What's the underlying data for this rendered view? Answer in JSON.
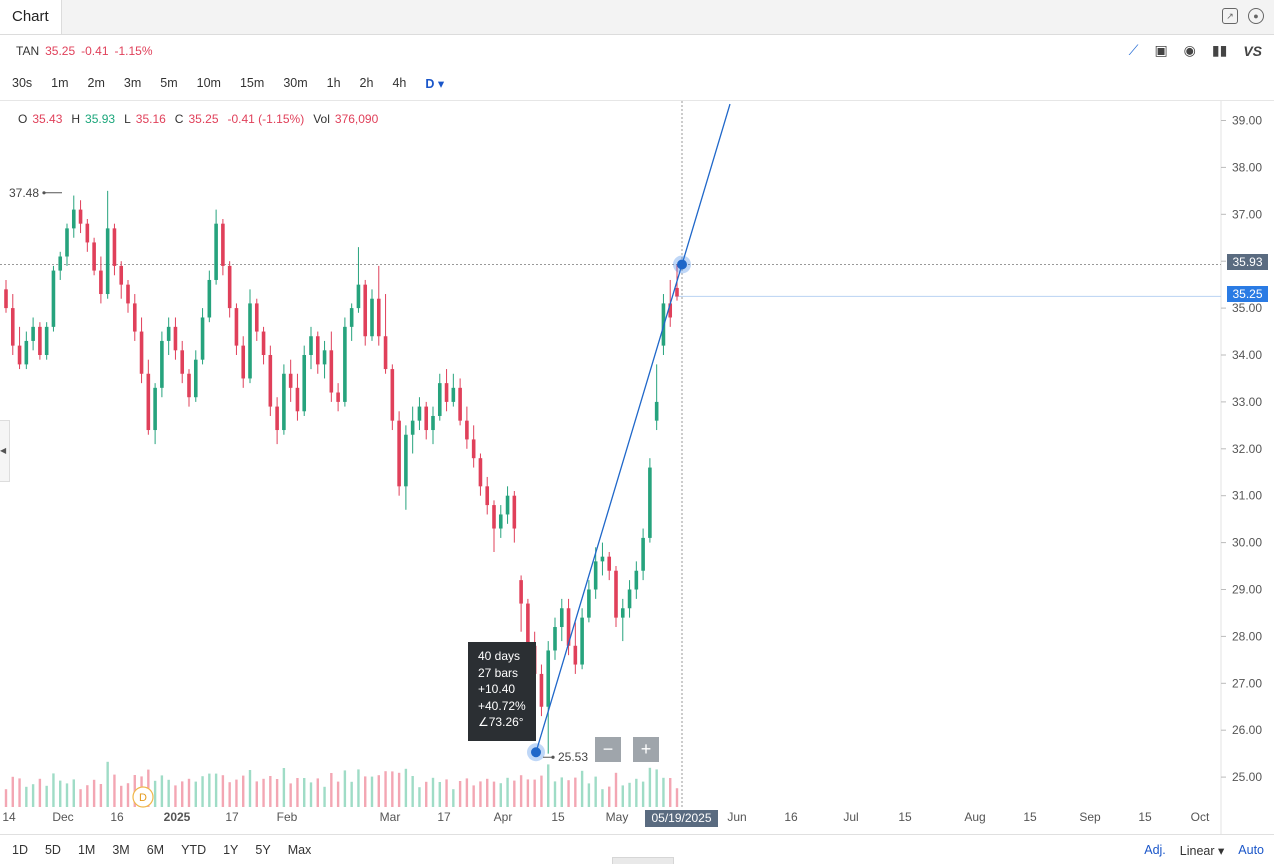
{
  "tab": {
    "title": "Chart"
  },
  "ticker": {
    "symbol": "TAN",
    "price": "35.25",
    "change": "-0.41",
    "change_pct": "-1.15%"
  },
  "tools": {
    "vs_label": "VS"
  },
  "intervals": [
    "30s",
    "1m",
    "2m",
    "3m",
    "5m",
    "10m",
    "15m",
    "30m",
    "1h",
    "2h",
    "4h",
    "D"
  ],
  "active_interval_index": 11,
  "ohlc": {
    "o_label": "O",
    "o": "35.43",
    "h_label": "H",
    "h": "35.93",
    "l_label": "L",
    "l": "35.16",
    "c_label": "C",
    "c": "35.25",
    "chg": "-0.41 (-1.15%)",
    "vol_label": "Vol",
    "vol": "376,090"
  },
  "measure": {
    "days": "40 days",
    "bars": "27 bars",
    "change": "+10.40",
    "pct": "+40.72%",
    "angle": "∠73.26°",
    "start_label": "25.53"
  },
  "high_label": "37.48",
  "price_badges": {
    "high": "35.93",
    "last": "35.25"
  },
  "date_badge": "05/19/2025",
  "zoom": {
    "minus": "−",
    "plus": "+"
  },
  "ranges": [
    "1D",
    "5D",
    "1M",
    "3M",
    "6M",
    "YTD",
    "1Y",
    "5Y",
    "Max"
  ],
  "bottom": {
    "adj": "Adj.",
    "scale": "Linear ▾",
    "auto": "Auto"
  },
  "earnings_marker": "D",
  "chart_data": {
    "type": "candlestick",
    "symbol": "TAN",
    "y_axis": {
      "ticks": [
        25,
        26,
        27,
        28,
        29,
        30,
        31,
        32,
        33,
        34,
        35,
        36,
        37,
        38,
        39
      ],
      "range": [
        24.3,
        39.3
      ],
      "scale": "linear"
    },
    "x_axis": {
      "tick_labels": [
        "14",
        "Dec",
        "16",
        "2025",
        "17",
        "Feb",
        "Mar",
        "17",
        "Apr",
        "15",
        "May",
        "Jun",
        "16",
        "Jul",
        "15",
        "Aug",
        "15",
        "Sep",
        "15",
        "Oct"
      ]
    },
    "candles_ohlc": [
      [
        35.4,
        35.6,
        34.9,
        35.0
      ],
      [
        35.0,
        35.3,
        34.0,
        34.2
      ],
      [
        34.2,
        34.6,
        33.7,
        33.8
      ],
      [
        33.8,
        34.5,
        33.7,
        34.3
      ],
      [
        34.3,
        34.8,
        34.1,
        34.6
      ],
      [
        34.6,
        34.7,
        33.9,
        34.0
      ],
      [
        34.0,
        34.7,
        33.9,
        34.6
      ],
      [
        34.6,
        35.9,
        34.5,
        35.8
      ],
      [
        35.8,
        36.2,
        35.6,
        36.1
      ],
      [
        36.1,
        36.8,
        35.9,
        36.7
      ],
      [
        36.7,
        37.4,
        36.5,
        37.1
      ],
      [
        37.1,
        37.3,
        36.6,
        36.8
      ],
      [
        36.8,
        36.9,
        36.2,
        36.4
      ],
      [
        36.4,
        36.5,
        35.7,
        35.8
      ],
      [
        35.8,
        36.1,
        35.1,
        35.3
      ],
      [
        35.3,
        37.5,
        35.2,
        36.7
      ],
      [
        36.7,
        36.8,
        35.7,
        35.9
      ],
      [
        35.9,
        36.0,
        35.2,
        35.5
      ],
      [
        35.5,
        35.6,
        34.9,
        35.1
      ],
      [
        35.1,
        35.3,
        34.3,
        34.5
      ],
      [
        34.5,
        34.8,
        33.4,
        33.6
      ],
      [
        33.6,
        33.9,
        32.3,
        32.4
      ],
      [
        32.4,
        33.4,
        32.1,
        33.3
      ],
      [
        33.3,
        34.5,
        33.1,
        34.3
      ],
      [
        34.3,
        34.8,
        34.0,
        34.6
      ],
      [
        34.6,
        34.8,
        33.9,
        34.1
      ],
      [
        34.1,
        34.3,
        33.4,
        33.6
      ],
      [
        33.6,
        33.7,
        32.9,
        33.1
      ],
      [
        33.1,
        34.1,
        33.0,
        33.9
      ],
      [
        33.9,
        35.0,
        33.8,
        34.8
      ],
      [
        34.8,
        35.8,
        34.7,
        35.6
      ],
      [
        35.6,
        37.1,
        35.5,
        36.8
      ],
      [
        36.8,
        36.9,
        35.7,
        35.9
      ],
      [
        35.9,
        36.0,
        34.8,
        35.0
      ],
      [
        35.0,
        35.1,
        34.0,
        34.2
      ],
      [
        34.2,
        34.4,
        33.3,
        33.5
      ],
      [
        33.5,
        35.4,
        33.4,
        35.1
      ],
      [
        35.1,
        35.2,
        34.3,
        34.5
      ],
      [
        34.5,
        34.6,
        33.8,
        34.0
      ],
      [
        34.0,
        34.2,
        32.7,
        32.9
      ],
      [
        32.9,
        33.1,
        32.1,
        32.4
      ],
      [
        32.4,
        33.8,
        32.3,
        33.6
      ],
      [
        33.6,
        33.9,
        33.0,
        33.3
      ],
      [
        33.3,
        33.6,
        32.6,
        32.8
      ],
      [
        32.8,
        34.2,
        32.7,
        34.0
      ],
      [
        34.0,
        34.6,
        33.7,
        34.4
      ],
      [
        34.4,
        34.5,
        33.6,
        33.8
      ],
      [
        33.8,
        34.3,
        33.5,
        34.1
      ],
      [
        34.1,
        34.5,
        33.0,
        33.2
      ],
      [
        33.2,
        33.4,
        32.8,
        33.0
      ],
      [
        33.0,
        34.8,
        32.9,
        34.6
      ],
      [
        34.6,
        35.1,
        34.3,
        35.0
      ],
      [
        35.0,
        36.3,
        34.9,
        35.5
      ],
      [
        35.5,
        35.6,
        34.2,
        34.4
      ],
      [
        34.4,
        35.4,
        34.3,
        35.2
      ],
      [
        35.2,
        35.9,
        34.2,
        34.4
      ],
      [
        34.4,
        35.3,
        33.6,
        33.7
      ],
      [
        33.7,
        33.8,
        32.4,
        32.6
      ],
      [
        32.6,
        32.8,
        31.0,
        31.2
      ],
      [
        31.2,
        32.5,
        30.7,
        32.3
      ],
      [
        32.3,
        32.9,
        31.9,
        32.6
      ],
      [
        32.6,
        33.1,
        32.4,
        32.9
      ],
      [
        32.9,
        33.0,
        32.2,
        32.4
      ],
      [
        32.4,
        32.9,
        32.1,
        32.7
      ],
      [
        32.7,
        33.6,
        32.6,
        33.4
      ],
      [
        33.4,
        33.7,
        32.8,
        33.0
      ],
      [
        33.0,
        33.6,
        32.9,
        33.3
      ],
      [
        33.3,
        33.5,
        32.5,
        32.6
      ],
      [
        32.6,
        32.9,
        32.0,
        32.2
      ],
      [
        32.2,
        32.5,
        31.6,
        31.8
      ],
      [
        31.8,
        31.9,
        31.0,
        31.2
      ],
      [
        31.2,
        31.4,
        30.6,
        30.8
      ],
      [
        30.8,
        30.9,
        29.8,
        30.3
      ],
      [
        30.3,
        30.8,
        30.1,
        30.6
      ],
      [
        30.6,
        31.2,
        30.4,
        31.0
      ],
      [
        31.0,
        31.1,
        30.0,
        30.3
      ],
      [
        29.2,
        29.3,
        28.1,
        28.7
      ],
      [
        28.7,
        28.8,
        27.4,
        27.8
      ],
      [
        27.8,
        28.1,
        27.0,
        27.2
      ],
      [
        27.2,
        27.4,
        26.3,
        26.5
      ],
      [
        26.5,
        27.9,
        25.5,
        27.7
      ],
      [
        27.7,
        28.4,
        27.5,
        28.2
      ],
      [
        28.2,
        28.8,
        27.9,
        28.6
      ],
      [
        28.6,
        28.8,
        27.6,
        27.8
      ],
      [
        27.8,
        28.3,
        27.2,
        27.4
      ],
      [
        27.4,
        28.6,
        27.3,
        28.4
      ],
      [
        28.4,
        29.2,
        28.3,
        29.0
      ],
      [
        29.0,
        29.9,
        28.8,
        29.6
      ],
      [
        29.6,
        30.0,
        29.3,
        29.7
      ],
      [
        29.7,
        29.8,
        29.2,
        29.4
      ],
      [
        29.4,
        29.5,
        28.2,
        28.4
      ],
      [
        28.4,
        28.8,
        27.9,
        28.6
      ],
      [
        28.6,
        29.2,
        28.4,
        29.0
      ],
      [
        29.0,
        29.6,
        28.8,
        29.4
      ],
      [
        29.4,
        30.3,
        29.2,
        30.1
      ],
      [
        30.1,
        31.8,
        30.0,
        31.6
      ],
      [
        32.6,
        33.8,
        32.4,
        33.0
      ],
      [
        34.2,
        35.3,
        34.0,
        35.1
      ],
      [
        35.1,
        35.6,
        34.6,
        34.8
      ],
      [
        35.43,
        35.93,
        35.16,
        35.25
      ]
    ],
    "measure_line": {
      "from": {
        "date": "Apr 9",
        "price": 25.53
      },
      "to": {
        "date": "05/19/2025",
        "price": 35.93
      }
    },
    "horizontal_lines": [
      35.93,
      35.25
    ],
    "period_high": 37.48,
    "period_low": 25.53
  }
}
